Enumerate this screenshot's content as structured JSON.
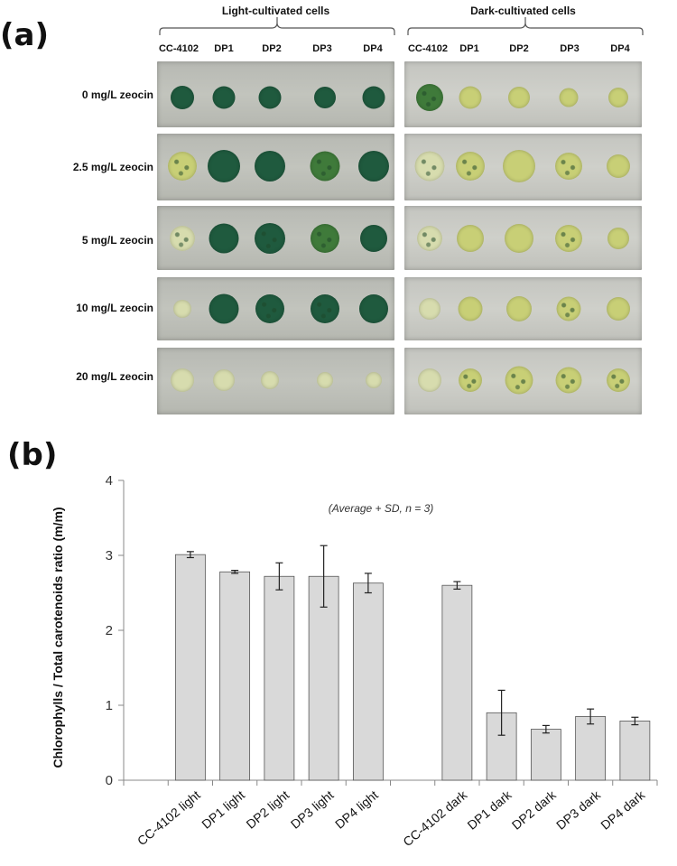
{
  "figure": {
    "panel_a_label": "(a)",
    "panel_b_label": "(b)"
  },
  "plates": {
    "light_title": "Light-cultivated cells",
    "dark_title": "Dark-cultivated cells",
    "light_columns": [
      "CC-4102",
      "DP1",
      "DP2",
      "DP3",
      "DP4"
    ],
    "dark_columns": [
      "CC-4102",
      "DP1",
      "DP2",
      "DP3",
      "DP4"
    ],
    "rows": [
      "0 mg/L zeocin",
      "2.5 mg/L zeocin",
      "5 mg/L zeocin",
      "10 mg/L zeocin",
      "20 mg/L zeocin"
    ],
    "colors": {
      "dark_green": "#1f5a3e",
      "green": "#3f7a3a",
      "yellow_green": "#c8cf76",
      "pale": "#d7dcae"
    }
  },
  "chart_data": {
    "type": "bar",
    "categories": [
      "CC-4102 light",
      "DP1 light",
      "DP2 light",
      "DP3 light",
      "DP4 light",
      "CC-4102 dark",
      "DP1 dark",
      "DP2 dark",
      "DP3 dark",
      "DP4 dark"
    ],
    "values": [
      3.01,
      2.78,
      2.72,
      2.72,
      2.63,
      2.6,
      0.9,
      0.68,
      0.85,
      0.79
    ],
    "errors": [
      0.04,
      0.02,
      0.18,
      0.41,
      0.13,
      0.05,
      0.3,
      0.05,
      0.1,
      0.05
    ],
    "ylabel": "Chlorophylls / Total carotenoids ratio (m/m)",
    "ylim": [
      0,
      4
    ],
    "yticks": [
      "0",
      "1",
      "2",
      "3",
      "4"
    ],
    "annotation": "(Average + SD, n = 3)",
    "bar_color": "#d9d9d9",
    "grid": false
  }
}
